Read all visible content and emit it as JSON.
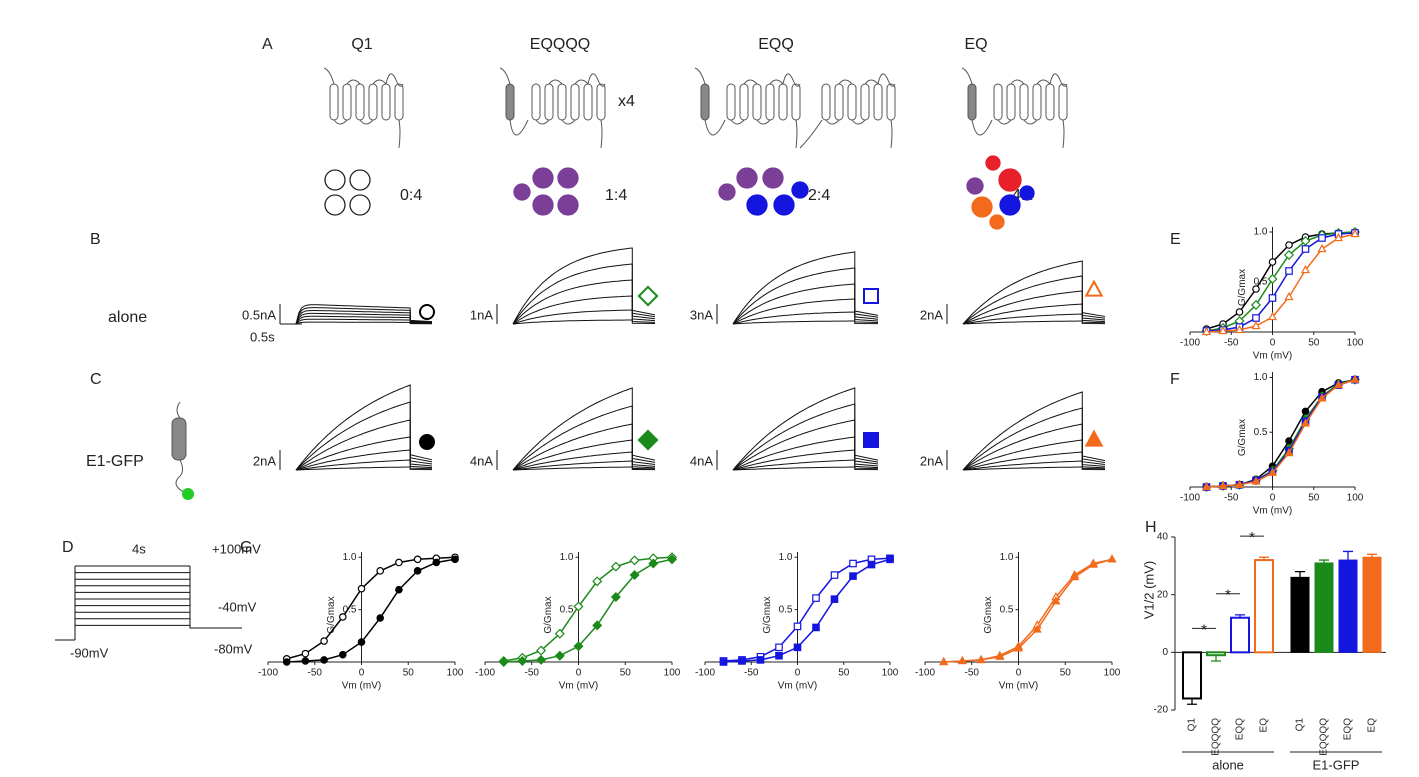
{
  "panels": [
    "A",
    "B",
    "C",
    "D",
    "E",
    "F",
    "G",
    "H"
  ],
  "constructs": [
    {
      "name": "Q1",
      "stoichiometry": "0:4"
    },
    {
      "name": "EQQQQ",
      "multiplier": "x4",
      "stoichiometry": "1:4"
    },
    {
      "name": "EQQ",
      "stoichiometry": "2:4"
    },
    {
      "name": "EQ",
      "stoichiometry": "4:4"
    }
  ],
  "row_labels": [
    "alone",
    "E1-GFP"
  ],
  "scale_bars": {
    "alone": [
      "0.5nA",
      "1nA",
      "3nA",
      "2nA"
    ],
    "time": "0.5s",
    "e1": [
      "2nA",
      "4nA",
      "4nA",
      "2nA"
    ]
  },
  "protocol": {
    "duration": "4s",
    "top": "+100mV",
    "mid": "-40mV",
    "bottom": "-80mV",
    "holding": "-90mV"
  },
  "chart_data": [
    {
      "type": "line",
      "x_label": "Vm (mV)",
      "y_label": "G/Gmax",
      "x": [
        -80,
        -60,
        -40,
        -20,
        0,
        20,
        40,
        60,
        80,
        100
      ],
      "xlim": [
        -100,
        100
      ],
      "xticks": [
        -100,
        -50,
        0,
        50,
        100
      ],
      "ylim": [
        0,
        1.05
      ],
      "yticks": [
        0.5,
        {
          "value": 1,
          "label": "1.0"
        }
      ],
      "series": [
        {
          "color": "#000000",
          "marker": "circle",
          "fill": "open",
          "values": [
            0.03,
            0.08,
            0.2,
            0.43,
            0.7,
            0.87,
            0.95,
            0.98,
            0.99,
            1.0
          ]
        },
        {
          "color": "#1b8a1b",
          "marker": "diamond",
          "fill": "open",
          "values": [
            0.01,
            0.04,
            0.11,
            0.27,
            0.53,
            0.77,
            0.91,
            0.97,
            0.99,
            1.0
          ]
        },
        {
          "color": "#1515e0",
          "marker": "square",
          "fill": "open",
          "values": [
            0.01,
            0.02,
            0.05,
            0.14,
            0.34,
            0.61,
            0.83,
            0.94,
            0.98,
            0.99
          ]
        },
        {
          "color": "#f26a1b",
          "marker": "triangle",
          "fill": "open",
          "values": [
            0,
            0.01,
            0.02,
            0.06,
            0.15,
            0.35,
            0.62,
            0.83,
            0.94,
            0.98
          ]
        }
      ]
    },
    {
      "type": "line",
      "x_label": "Vm (mV)",
      "y_label": "G/Gmax",
      "x": [
        -80,
        -60,
        -40,
        -20,
        0,
        20,
        40,
        60,
        80,
        100
      ],
      "xlim": [
        -100,
        100
      ],
      "xticks": [
        -100,
        -50,
        0,
        50,
        100
      ],
      "ylim": [
        0,
        1.05
      ],
      "yticks": [
        0.5,
        {
          "value": 1,
          "label": "1.0"
        }
      ],
      "series": [
        {
          "color": "#000000",
          "marker": "circle",
          "fill": "filled",
          "values": [
            0,
            0.01,
            0.02,
            0.07,
            0.19,
            0.42,
            0.69,
            0.87,
            0.95,
            0.98
          ]
        },
        {
          "color": "#1b8a1b",
          "marker": "diamond",
          "fill": "filled",
          "values": [
            0,
            0.01,
            0.02,
            0.06,
            0.15,
            0.35,
            0.62,
            0.83,
            0.94,
            0.98
          ]
        },
        {
          "color": "#1515e0",
          "marker": "square",
          "fill": "filled",
          "values": [
            0,
            0.01,
            0.02,
            0.06,
            0.14,
            0.33,
            0.6,
            0.82,
            0.93,
            0.98
          ]
        },
        {
          "color": "#f26a1b",
          "marker": "triangle",
          "fill": "filled",
          "values": [
            0,
            0.01,
            0.02,
            0.05,
            0.13,
            0.31,
            0.58,
            0.81,
            0.93,
            0.98
          ]
        }
      ]
    },
    {
      "type": "line",
      "x_label": "Vm (mV)",
      "y_label": "G/Gmax",
      "x": [
        -80,
        -60,
        -40,
        -20,
        0,
        20,
        40,
        60,
        80,
        100
      ],
      "xlim": [
        -100,
        100
      ],
      "xticks": [
        -100,
        -50,
        0,
        50,
        100
      ],
      "ylim": [
        0,
        1.05
      ],
      "yticks": [
        0.5,
        {
          "value": 1,
          "label": "1.0"
        }
      ],
      "series": [
        {
          "color": "#000000",
          "marker": "circle",
          "fill": "open",
          "values": [
            0.03,
            0.08,
            0.2,
            0.43,
            0.7,
            0.87,
            0.95,
            0.98,
            0.99,
            1.0
          ]
        },
        {
          "color": "#000000",
          "marker": "circle",
          "fill": "filled",
          "values": [
            0,
            0.01,
            0.02,
            0.07,
            0.19,
            0.42,
            0.69,
            0.87,
            0.95,
            0.98
          ]
        }
      ]
    },
    {
      "type": "line",
      "x_label": "Vm (mV)",
      "y_label": "G/Gmax",
      "x": [
        -80,
        -60,
        -40,
        -20,
        0,
        20,
        40,
        60,
        80,
        100
      ],
      "xlim": [
        -100,
        100
      ],
      "xticks": [
        -100,
        -50,
        0,
        50,
        100
      ],
      "ylim": [
        0,
        1.05
      ],
      "yticks": [
        0.5,
        {
          "value": 1,
          "label": "1.0"
        }
      ],
      "series": [
        {
          "color": "#1b8a1b",
          "marker": "diamond",
          "fill": "open",
          "values": [
            0.01,
            0.04,
            0.11,
            0.27,
            0.53,
            0.77,
            0.91,
            0.97,
            0.99,
            1.0
          ]
        },
        {
          "color": "#1b8a1b",
          "marker": "diamond",
          "fill": "filled",
          "values": [
            0,
            0.01,
            0.02,
            0.06,
            0.15,
            0.35,
            0.62,
            0.83,
            0.94,
            0.98
          ]
        }
      ]
    },
    {
      "type": "line",
      "x_label": "Vm (mV)",
      "y_label": "G/Gmax",
      "x": [
        -80,
        -60,
        -40,
        -20,
        0,
        20,
        40,
        60,
        80,
        100
      ],
      "xlim": [
        -100,
        100
      ],
      "xticks": [
        -100,
        -50,
        0,
        50,
        100
      ],
      "ylim": [
        0,
        1.05
      ],
      "yticks": [
        0.5,
        {
          "value": 1,
          "label": "1.0"
        }
      ],
      "series": [
        {
          "color": "#1515e0",
          "marker": "square",
          "fill": "open",
          "values": [
            0.01,
            0.02,
            0.05,
            0.14,
            0.34,
            0.61,
            0.83,
            0.94,
            0.98,
            0.99
          ]
        },
        {
          "color": "#1515e0",
          "marker": "square",
          "fill": "filled",
          "values": [
            0,
            0.01,
            0.02,
            0.06,
            0.14,
            0.33,
            0.6,
            0.82,
            0.93,
            0.98
          ]
        }
      ]
    },
    {
      "type": "line",
      "x_label": "Vm (mV)",
      "y_label": "G/Gmax",
      "x": [
        -80,
        -60,
        -40,
        -20,
        0,
        20,
        40,
        60,
        80,
        100
      ],
      "xlim": [
        -100,
        100
      ],
      "xticks": [
        -100,
        -50,
        0,
        50,
        100
      ],
      "ylim": [
        0,
        1.05
      ],
      "yticks": [
        0.5,
        {
          "value": 1,
          "label": "1.0"
        }
      ],
      "series": [
        {
          "color": "#f26a1b",
          "marker": "triangle",
          "fill": "open",
          "values": [
            0,
            0.01,
            0.02,
            0.06,
            0.15,
            0.35,
            0.62,
            0.83,
            0.94,
            0.98
          ]
        },
        {
          "color": "#f26a1b",
          "marker": "triangle",
          "fill": "filled",
          "values": [
            0,
            0.01,
            0.02,
            0.05,
            0.13,
            0.31,
            0.58,
            0.81,
            0.93,
            0.98
          ]
        }
      ]
    },
    {
      "type": "bar",
      "y_label": "V1/2 (mV)",
      "categories": [
        "Q1",
        "EQQQQ",
        "EQQ",
        "EQ",
        "Q1",
        "EQQQQ",
        "EQQ",
        "EQ"
      ],
      "values": [
        -16,
        -1,
        12,
        32,
        26,
        31,
        32,
        33
      ],
      "errors": [
        2,
        2,
        1,
        1,
        2,
        1,
        3,
        1
      ],
      "colors": [
        "#000000",
        "#1b8a1b",
        "#1515e0",
        "#f26a1b",
        "#000000",
        "#1b8a1b",
        "#1515e0",
        "#f26a1b"
      ],
      "styles": [
        "open",
        "open",
        "open",
        "open",
        "filled",
        "filled",
        "filled",
        "filled"
      ],
      "groups": [
        "alone",
        "E1-GFP"
      ],
      "annotations": [
        "*",
        "*",
        "*"
      ],
      "ylim": [
        -20,
        40
      ],
      "yticks": [
        -20,
        0,
        20,
        40
      ]
    }
  ]
}
